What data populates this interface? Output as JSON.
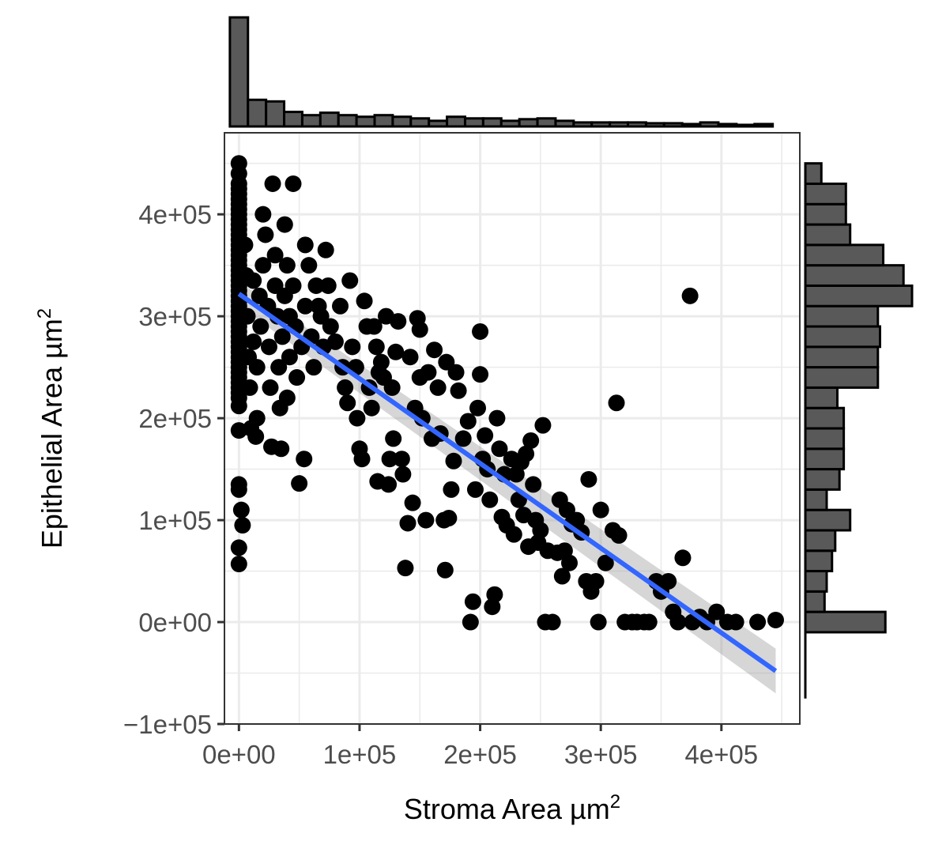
{
  "chart_data": {
    "type": "scatter",
    "title": "",
    "xlabel": "Stroma Area µm",
    "xlabel_sup": "2",
    "ylabel": "Epithelial Area µm",
    "ylabel_sup": "2",
    "xlim": [
      -12000,
      465000
    ],
    "ylim": [
      -100000,
      480000
    ],
    "x_ticks": [
      0,
      100000,
      200000,
      300000,
      400000
    ],
    "x_tick_labels": [
      "0e+00",
      "1e+05",
      "2e+05",
      "3e+05",
      "4e+05"
    ],
    "y_ticks": [
      -100000,
      0,
      100000,
      200000,
      300000,
      400000
    ],
    "y_tick_labels": [
      "−1e+05",
      "0e+00",
      "1e+05",
      "2e+05",
      "3e+05",
      "4e+05"
    ],
    "grid": true,
    "colors": {
      "points": "#000000",
      "regression_line": "#3366ff",
      "confidence_band": "#999999",
      "histogram_fill": "#595959",
      "histogram_stroke": "#000000",
      "grid": "#ebebeb",
      "panel_border": "#333333"
    },
    "points": [
      [
        0,
        450000
      ],
      [
        0,
        440000
      ],
      [
        0,
        430000
      ],
      [
        0,
        425000
      ],
      [
        0,
        420000
      ],
      [
        0,
        415000
      ],
      [
        0,
        410000
      ],
      [
        0,
        405000
      ],
      [
        0,
        400000
      ],
      [
        0,
        395000
      ],
      [
        0,
        390000
      ],
      [
        0,
        385000
      ],
      [
        0,
        380000
      ],
      [
        0,
        375000
      ],
      [
        0,
        370000
      ],
      [
        0,
        365000
      ],
      [
        0,
        360000
      ],
      [
        0,
        355000
      ],
      [
        0,
        350000
      ],
      [
        0,
        345000
      ],
      [
        0,
        340000
      ],
      [
        0,
        335000
      ],
      [
        0,
        330000
      ],
      [
        0,
        325000
      ],
      [
        0,
        320000
      ],
      [
        0,
        315000
      ],
      [
        0,
        310000
      ],
      [
        0,
        305000
      ],
      [
        0,
        300000
      ],
      [
        0,
        295000
      ],
      [
        0,
        290000
      ],
      [
        0,
        285000
      ],
      [
        0,
        280000
      ],
      [
        0,
        275000
      ],
      [
        0,
        270000
      ],
      [
        0,
        265000
      ],
      [
        0,
        260000
      ],
      [
        0,
        255000
      ],
      [
        0,
        250000
      ],
      [
        0,
        245000
      ],
      [
        0,
        240000
      ],
      [
        0,
        235000
      ],
      [
        0,
        230000
      ],
      [
        0,
        225000
      ],
      [
        0,
        220000
      ],
      [
        0,
        212000
      ],
      [
        0,
        188000
      ],
      [
        0,
        135000
      ],
      [
        0,
        130000
      ],
      [
        0,
        73000
      ],
      [
        0,
        57000
      ],
      [
        2000,
        110000
      ],
      [
        3000,
        95000
      ],
      [
        5000,
        370000
      ],
      [
        6000,
        340000
      ],
      [
        7000,
        300000
      ],
      [
        8000,
        260000
      ],
      [
        9000,
        230000
      ],
      [
        10000,
        190000
      ],
      [
        12000,
        335000
      ],
      [
        12000,
        275000
      ],
      [
        14000,
        182000
      ],
      [
        15000,
        200000
      ],
      [
        15000,
        250000
      ],
      [
        17000,
        320000
      ],
      [
        18000,
        290000
      ],
      [
        20000,
        400000
      ],
      [
        20000,
        350000
      ],
      [
        22000,
        380000
      ],
      [
        24000,
        310000
      ],
      [
        25000,
        270000
      ],
      [
        26000,
        230000
      ],
      [
        27000,
        172000
      ],
      [
        28000,
        430000
      ],
      [
        30000,
        360000
      ],
      [
        30000,
        330000
      ],
      [
        32000,
        300000
      ],
      [
        33000,
        250000
      ],
      [
        34000,
        210000
      ],
      [
        35000,
        170000
      ],
      [
        36000,
        280000
      ],
      [
        38000,
        390000
      ],
      [
        38000,
        320000
      ],
      [
        40000,
        350000
      ],
      [
        40000,
        220000
      ],
      [
        42000,
        260000
      ],
      [
        42000,
        300000
      ],
      [
        45000,
        430000
      ],
      [
        45000,
        330000
      ],
      [
        47000,
        290000
      ],
      [
        48000,
        240000
      ],
      [
        50000,
        136000
      ],
      [
        52000,
        270000
      ],
      [
        54000,
        160000
      ],
      [
        55000,
        370000
      ],
      [
        55000,
        310000
      ],
      [
        58000,
        350000
      ],
      [
        60000,
        280000
      ],
      [
        62000,
        250000
      ],
      [
        64000,
        330000
      ],
      [
        66000,
        310000
      ],
      [
        68000,
        300000
      ],
      [
        70000,
        270000
      ],
      [
        72000,
        365000
      ],
      [
        74000,
        330000
      ],
      [
        76000,
        290000
      ],
      [
        80000,
        275000
      ],
      [
        84000,
        310000
      ],
      [
        86000,
        250000
      ],
      [
        88000,
        230000
      ],
      [
        90000,
        215000
      ],
      [
        92000,
        335000
      ],
      [
        94000,
        270000
      ],
      [
        97000,
        250000
      ],
      [
        98000,
        200000
      ],
      [
        100000,
        170000
      ],
      [
        102000,
        160000
      ],
      [
        104000,
        315000
      ],
      [
        106000,
        290000
      ],
      [
        108000,
        230000
      ],
      [
        110000,
        210000
      ],
      [
        112000,
        290000
      ],
      [
        114000,
        270000
      ],
      [
        115000,
        138000
      ],
      [
        116000,
        245000
      ],
      [
        118000,
        255000
      ],
      [
        120000,
        240000
      ],
      [
        122000,
        300000
      ],
      [
        124000,
        135000
      ],
      [
        125000,
        160000
      ],
      [
        127000,
        230000
      ],
      [
        128000,
        180000
      ],
      [
        130000,
        265000
      ],
      [
        132000,
        295000
      ],
      [
        135000,
        160000
      ],
      [
        136000,
        145000
      ],
      [
        138000,
        53000
      ],
      [
        140000,
        97000
      ],
      [
        142000,
        260000
      ],
      [
        144000,
        117000
      ],
      [
        146000,
        210000
      ],
      [
        148000,
        298000
      ],
      [
        150000,
        240000
      ],
      [
        150000,
        287000
      ],
      [
        152000,
        200000
      ],
      [
        155000,
        100000
      ],
      [
        157000,
        245000
      ],
      [
        160000,
        180000
      ],
      [
        162000,
        267000
      ],
      [
        165000,
        230000
      ],
      [
        167000,
        185000
      ],
      [
        170000,
        100000
      ],
      [
        171000,
        51000
      ],
      [
        172000,
        255000
      ],
      [
        174000,
        102000
      ],
      [
        176000,
        130000
      ],
      [
        178000,
        158000
      ],
      [
        180000,
        245000
      ],
      [
        182000,
        227000
      ],
      [
        186000,
        180000
      ],
      [
        190000,
        197000
      ],
      [
        192000,
        0
      ],
      [
        194000,
        20000
      ],
      [
        196000,
        130000
      ],
      [
        198000,
        210000
      ],
      [
        200000,
        285000
      ],
      [
        200000,
        243000
      ],
      [
        202000,
        160000
      ],
      [
        204000,
        183000
      ],
      [
        206000,
        150000
      ],
      [
        208000,
        120000
      ],
      [
        210000,
        15000
      ],
      [
        212000,
        27000
      ],
      [
        214000,
        200000
      ],
      [
        216000,
        170000
      ],
      [
        218000,
        103000
      ],
      [
        220000,
        145000
      ],
      [
        222000,
        95000
      ],
      [
        226000,
        160000
      ],
      [
        228000,
        86000
      ],
      [
        230000,
        145000
      ],
      [
        232000,
        120000
      ],
      [
        234000,
        157000
      ],
      [
        236000,
        105000
      ],
      [
        238000,
        165000
      ],
      [
        240000,
        74000
      ],
      [
        242000,
        178000
      ],
      [
        244000,
        135000
      ],
      [
        246000,
        100000
      ],
      [
        248000,
        78000
      ],
      [
        250000,
        90000
      ],
      [
        252000,
        193000
      ],
      [
        254000,
        0
      ],
      [
        256000,
        70000
      ],
      [
        260000,
        0
      ],
      [
        264000,
        68000
      ],
      [
        266000,
        120000
      ],
      [
        268000,
        45000
      ],
      [
        270000,
        70000
      ],
      [
        272000,
        110000
      ],
      [
        274000,
        58000
      ],
      [
        276000,
        96000
      ],
      [
        280000,
        100000
      ],
      [
        284000,
        88000
      ],
      [
        288000,
        40000
      ],
      [
        290000,
        140000
      ],
      [
        292000,
        30000
      ],
      [
        296000,
        40000
      ],
      [
        298000,
        0
      ],
      [
        300000,
        110000
      ],
      [
        304000,
        58000
      ],
      [
        310000,
        90000
      ],
      [
        313000,
        215000
      ],
      [
        315000,
        85000
      ],
      [
        320000,
        0
      ],
      [
        326000,
        0
      ],
      [
        330000,
        0
      ],
      [
        336000,
        0
      ],
      [
        340000,
        0
      ],
      [
        346000,
        40000
      ],
      [
        350000,
        30000
      ],
      [
        356000,
        40000
      ],
      [
        360000,
        10000
      ],
      [
        364000,
        0
      ],
      [
        368000,
        63000
      ],
      [
        374000,
        320000
      ],
      [
        376000,
        0
      ],
      [
        382000,
        5000
      ],
      [
        388000,
        0
      ],
      [
        396000,
        10000
      ],
      [
        405000,
        0
      ],
      [
        412000,
        0
      ],
      [
        430000,
        0
      ],
      [
        445000,
        2000
      ]
    ],
    "regression": {
      "x": [
        0,
        445000
      ],
      "y": [
        322000,
        -48000
      ],
      "band_low": [
        310000,
        -70000
      ],
      "band_high": [
        334000,
        -26000
      ]
    },
    "x_histogram": {
      "bin_width": 15000,
      "bin_centers": [
        0,
        15000,
        30000,
        45000,
        60000,
        75000,
        90000,
        105000,
        120000,
        135000,
        150000,
        165000,
        180000,
        195000,
        210000,
        225000,
        240000,
        255000,
        270000,
        285000,
        300000,
        315000,
        330000,
        345000,
        360000,
        375000,
        390000,
        405000,
        420000,
        435000
      ],
      "counts": [
        135,
        33,
        31,
        18,
        14,
        17,
        14,
        12,
        14,
        12,
        10,
        7,
        12,
        10,
        10,
        7,
        9,
        10,
        7,
        5,
        5,
        5,
        5,
        4,
        4,
        3,
        5,
        3,
        2,
        3
      ]
    },
    "y_histogram": {
      "bin_width": 20000,
      "bin_centers": [
        -60000,
        -40000,
        -20000,
        0,
        20000,
        40000,
        60000,
        80000,
        100000,
        120000,
        140000,
        160000,
        180000,
        200000,
        220000,
        240000,
        260000,
        280000,
        300000,
        320000,
        340000,
        360000,
        380000,
        400000,
        420000,
        440000
      ],
      "counts": [
        0,
        0,
        0,
        75,
        18,
        20,
        25,
        28,
        42,
        20,
        32,
        36,
        36,
        36,
        30,
        68,
        68,
        70,
        68,
        100,
        92,
        73,
        42,
        38,
        38,
        15
      ],
      "ymin_extent": -75000
    }
  }
}
